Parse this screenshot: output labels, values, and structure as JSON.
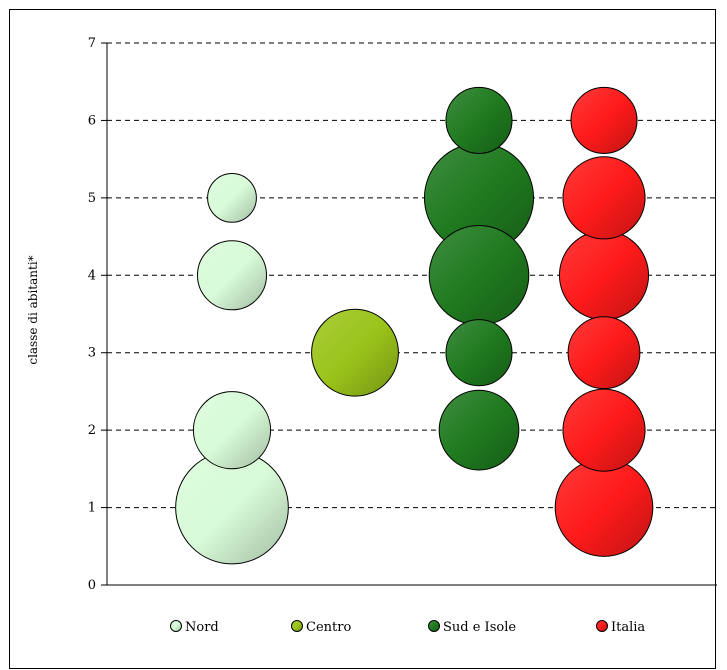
{
  "chart_data": {
    "type": "bubble",
    "title": "",
    "xlabel": "",
    "ylabel": "classe di abitanti*",
    "ylim": [
      0,
      7
    ],
    "yticks": [
      "0",
      "1",
      "2",
      "3",
      "4",
      "5",
      "6",
      "7"
    ],
    "grid": "horizontal-dashed",
    "legend_position": "bottom",
    "series": [
      {
        "name": "Nord",
        "color": "#d8fbd8",
        "x": 1,
        "points": [
          {
            "y": 1,
            "size": 3.2
          },
          {
            "y": 2,
            "size": 1.5
          },
          {
            "y": 4,
            "size": 1.2
          },
          {
            "y": 5,
            "size": 0.6
          }
        ]
      },
      {
        "name": "Centro",
        "color": "#9ac41a",
        "x": 2,
        "points": [
          {
            "y": 3,
            "size": 1.9
          }
        ]
      },
      {
        "name": "Sud e Isole",
        "color": "#1f7a1f",
        "x": 3,
        "points": [
          {
            "y": 2,
            "size": 1.6
          },
          {
            "y": 3,
            "size": 1.1
          },
          {
            "y": 4,
            "size": 2.5
          },
          {
            "y": 5,
            "size": 3.0
          },
          {
            "y": 6,
            "size": 1.1
          }
        ]
      },
      {
        "name": "Italia",
        "color": "#ff1a1a",
        "x": 4,
        "points": [
          {
            "y": 1,
            "size": 2.4
          },
          {
            "y": 2,
            "size": 1.7
          },
          {
            "y": 3,
            "size": 1.3
          },
          {
            "y": 4,
            "size": 2.0
          },
          {
            "y": 5,
            "size": 1.7
          },
          {
            "y": 6,
            "size": 1.1
          }
        ]
      }
    ]
  }
}
